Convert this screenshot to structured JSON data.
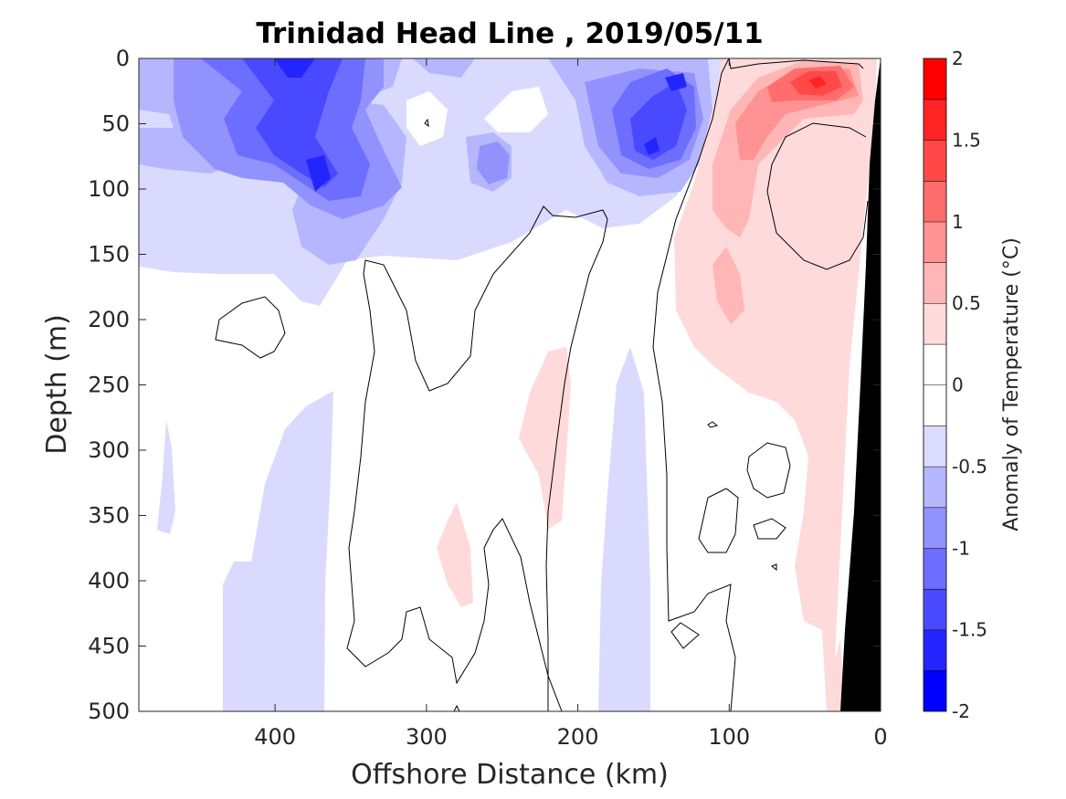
{
  "chart_data": {
    "type": "heatmap",
    "title": "Trinidad Head Line , 2019/05/11",
    "xlabel": "Offshore Distance (km)",
    "ylabel": "Depth (m)",
    "xlim": [
      490,
      0
    ],
    "ylim": [
      0,
      500
    ],
    "xticks": [
      400,
      300,
      200,
      100,
      0
    ],
    "yticks": [
      0,
      50,
      100,
      150,
      200,
      250,
      300,
      350,
      400,
      450,
      500
    ],
    "colorbar": {
      "label": "Anomaly of Temperature (°C)",
      "range": [
        -2,
        2
      ],
      "step": 0.25,
      "ticks": [
        "2",
        "1.5",
        "1",
        "0.5",
        "0",
        "-0.5",
        "-1",
        "-1.5",
        "-2"
      ],
      "cold_color": "#0000ff",
      "warm_color": "#ff0000",
      "neutral_color": "#ffffff"
    },
    "zero_contour_color": "#000000",
    "bathymetry_color": "#000000",
    "features": [
      {
        "region": "upper 0-150 m, 490-170 km offshore",
        "anomaly_min": -1.75,
        "note": "cold core near 390-370 km, 50-110 m"
      },
      {
        "region": "near-surface 0-100 m, 170-120 km offshore",
        "anomaly_min": -1.5
      },
      {
        "region": "0-250 m, 100-20 km offshore",
        "anomaly_max": 1.25,
        "note": "warm core near 45 km, 15-30 m"
      },
      {
        "region": "deep warm patches 230-400 m near 280 km and 220 km",
        "anomaly_max": 0.25
      },
      {
        "region": "deep cool bands 250-500 m near 430 km and 170 km",
        "anomaly_min": -0.25
      }
    ]
  }
}
